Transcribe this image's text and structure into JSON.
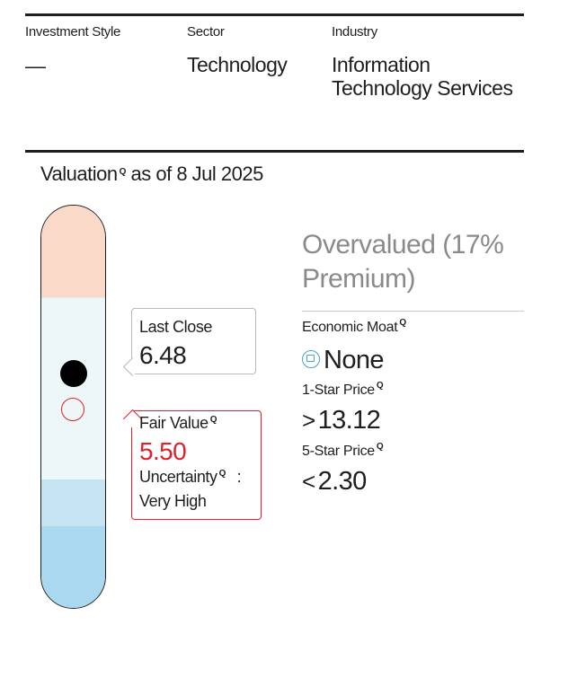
{
  "header": {
    "investment_style_label": "Investment Style",
    "investment_style_value": "—",
    "sector_label": "Sector",
    "sector_value": "Technology",
    "industry_label": "Industry",
    "industry_value": "Information Technology Services"
  },
  "valuation": {
    "title": "Valuation",
    "as_of": "as of 8 Jul 2025",
    "status": "Overvalued (17% Premium)",
    "last_close_label": "Last Close",
    "last_close_value": "6.48",
    "fair_value_label": "Fair Value",
    "fair_value_value": "5.50",
    "uncertainty_label": "Uncertainty",
    "uncertainty_sep": ":",
    "uncertainty_value": "Very High",
    "economic_moat_label": "Economic Moat",
    "economic_moat_value": "None",
    "one_star_label": "1-Star Price",
    "one_star_symbol": ">",
    "one_star_value": "13.12",
    "five_star_label": "5-Star Price",
    "five_star_symbol": "<",
    "five_star_value": "2.30"
  },
  "icons": {
    "info": "q-info-icon",
    "moat": "moat-shield-icon"
  },
  "colors": {
    "overvalued_band": "#fbd9c8",
    "fair_band": "#eef7f7",
    "undervalued_light": "#c6e3f2",
    "undervalued_dark": "#a9d8f0",
    "fair_value_red": "#e0202a",
    "moat_icon": "#4aa3c8",
    "status_gray": "#8a8a8a"
  }
}
